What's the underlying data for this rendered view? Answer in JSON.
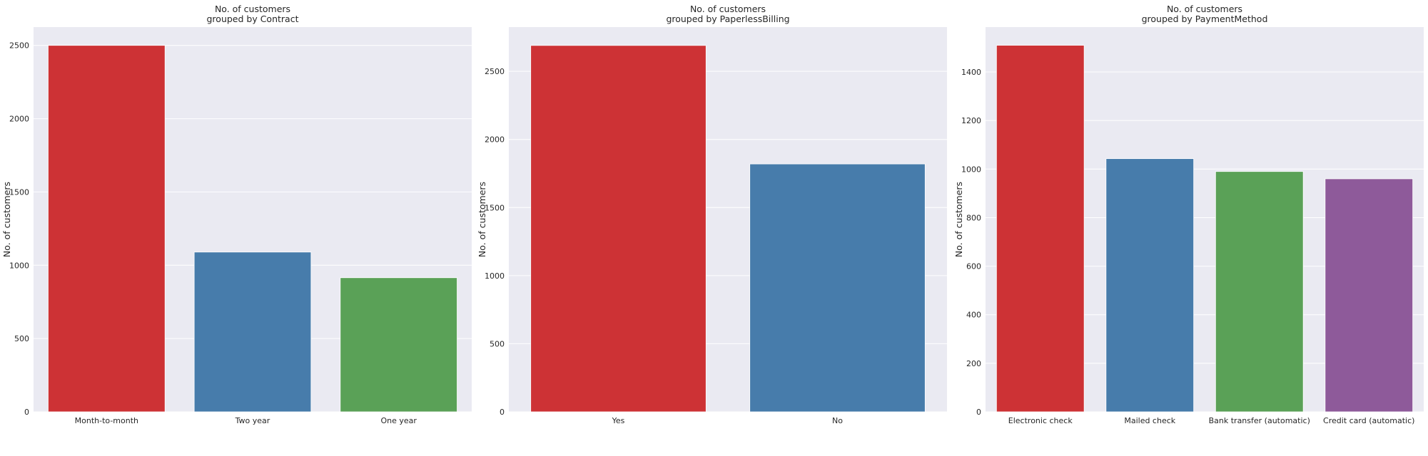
{
  "figure": {
    "background": "#ffffff",
    "plot_background": "#eaeaf2",
    "grid_color": "#ffffff"
  },
  "palette": [
    "#cd3235",
    "#477cab",
    "#5aa157",
    "#8e5a9a"
  ],
  "chart_data": [
    {
      "type": "bar",
      "title_lines": [
        "No. of customers",
        "grouped by Contract"
      ],
      "xlabel": "",
      "ylabel": "No. of customers",
      "categories": [
        "Month-to-month",
        "Two year",
        "One year"
      ],
      "values": [
        2500,
        1090,
        915
      ],
      "ylim": [
        0,
        2625
      ],
      "yticks": [
        0,
        500,
        1000,
        1500,
        2000,
        2500
      ],
      "grid": true
    },
    {
      "type": "bar",
      "title_lines": [
        "No. of customers",
        "grouped by PaperlessBilling"
      ],
      "xlabel": "",
      "ylabel": "No. of customers",
      "categories": [
        "Yes",
        "No"
      ],
      "values": [
        2690,
        1820
      ],
      "ylim": [
        0,
        2825
      ],
      "yticks": [
        0,
        500,
        1000,
        1500,
        2000,
        2500
      ],
      "grid": true
    },
    {
      "type": "bar",
      "title_lines": [
        "No. of customers",
        "grouped by PaymentMethod"
      ],
      "xlabel": "",
      "ylabel": "No. of customers",
      "categories": [
        "Electronic check",
        "Mailed check",
        "Bank transfer (automatic)",
        "Credit card (automatic)"
      ],
      "values": [
        1510,
        1043,
        990,
        960
      ],
      "ylim": [
        0,
        1585
      ],
      "yticks": [
        0,
        200,
        400,
        600,
        800,
        1000,
        1200,
        1400
      ],
      "grid": true
    }
  ]
}
